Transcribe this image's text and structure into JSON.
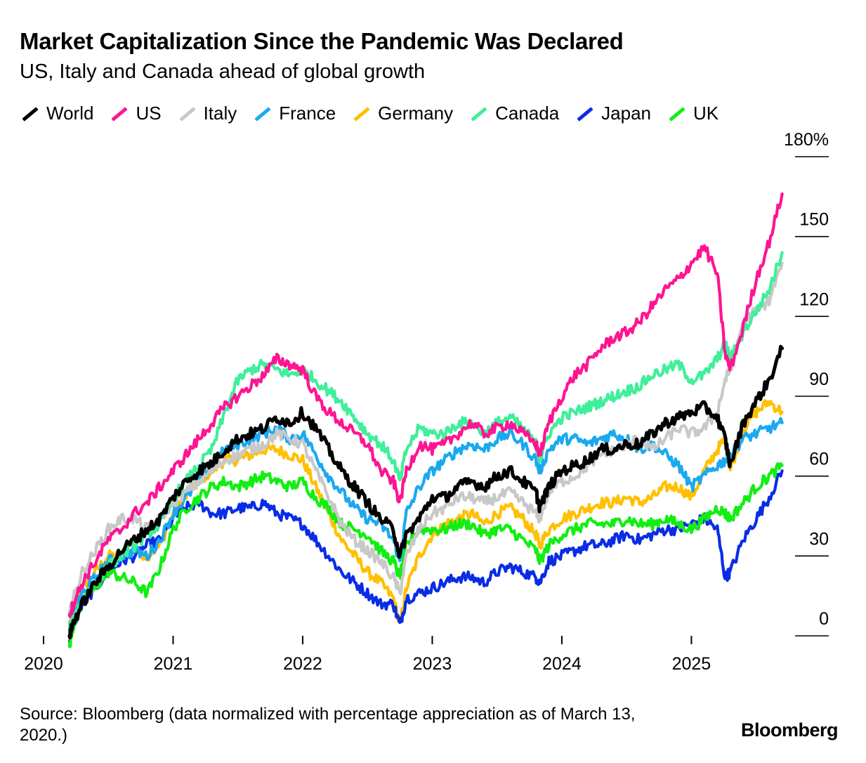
{
  "header": {
    "title": "Market Capitalization Since the Pandemic Was Declared",
    "subtitle": "US, Italy and Canada ahead of global growth"
  },
  "legend": {
    "items": [
      {
        "label": "World",
        "color": "#000000"
      },
      {
        "label": "US",
        "color": "#ff1493"
      },
      {
        "label": "Italy",
        "color": "#c8c8c8"
      },
      {
        "label": "France",
        "color": "#1aa9f0"
      },
      {
        "label": "Germany",
        "color": "#ffc000"
      },
      {
        "label": "Canada",
        "color": "#3fef9a"
      },
      {
        "label": "Japan",
        "color": "#0a2ce6"
      },
      {
        "label": "UK",
        "color": "#12ee12"
      }
    ]
  },
  "footer": {
    "source": "Source: Bloomberg (data normalized with percentage appreciation as of March 13, 2020.)",
    "brand": "Bloomberg"
  },
  "chart_data": {
    "type": "line",
    "title": "Market Capitalization Since the Pandemic Was Declared",
    "subtitle": "US, Italy and Canada ahead of global growth",
    "xlabel": "",
    "ylabel": "",
    "y_ticks": [
      {
        "value": 0,
        "label": "0"
      },
      {
        "value": 30,
        "label": "30"
      },
      {
        "value": 60,
        "label": "60"
      },
      {
        "value": 90,
        "label": "90"
      },
      {
        "value": 120,
        "label": "120"
      },
      {
        "value": 150,
        "label": "150"
      },
      {
        "value": 180,
        "label": "180%"
      }
    ],
    "x_ticks": [
      {
        "value": 2020.0,
        "label": "2020"
      },
      {
        "value": 2021.0,
        "label": "2021"
      },
      {
        "value": 2022.0,
        "label": "2022"
      },
      {
        "value": 2023.0,
        "label": "2023"
      },
      {
        "value": 2024.0,
        "label": "2024"
      },
      {
        "value": 2025.0,
        "label": "2025"
      }
    ],
    "ylim": [
      0,
      180
    ],
    "xlim": [
      2020.0,
      2025.8
    ],
    "y_axis_side": "right",
    "grid": false,
    "legend_position": "top",
    "series": [
      {
        "name": "World",
        "color": "#000000",
        "x": [
          2020.2,
          2020.23,
          2020.3,
          2020.4,
          2020.5,
          2020.6,
          2020.7,
          2020.8,
          2020.9,
          2021.0,
          2021.1,
          2021.2,
          2021.3,
          2021.4,
          2021.5,
          2021.6,
          2021.7,
          2021.8,
          2021.9,
          2022.0,
          2022.1,
          2022.2,
          2022.3,
          2022.4,
          2022.5,
          2022.6,
          2022.7,
          2022.75,
          2022.8,
          2022.9,
          2023.0,
          2023.1,
          2023.2,
          2023.3,
          2023.4,
          2023.5,
          2023.6,
          2023.7,
          2023.8,
          2023.83,
          2023.9,
          2024.0,
          2024.1,
          2024.2,
          2024.3,
          2024.4,
          2024.5,
          2024.6,
          2024.7,
          2024.8,
          2024.9,
          2025.0,
          2025.1,
          2025.2,
          2025.26,
          2025.3,
          2025.4,
          2025.5,
          2025.6,
          2025.7
        ],
        "y": [
          0,
          5,
          12,
          20,
          26,
          32,
          36,
          40,
          44,
          52,
          58,
          62,
          65,
          70,
          74,
          76,
          78,
          82,
          80,
          84,
          78,
          70,
          62,
          56,
          50,
          44,
          40,
          30,
          38,
          44,
          52,
          52,
          56,
          58,
          56,
          60,
          62,
          58,
          54,
          48,
          56,
          62,
          64,
          66,
          70,
          70,
          72,
          72,
          76,
          80,
          82,
          84,
          86,
          82,
          74,
          64,
          80,
          88,
          96,
          108
        ]
      },
      {
        "name": "US",
        "color": "#ff1493",
        "x": [
          2020.2,
          2020.23,
          2020.3,
          2020.4,
          2020.5,
          2020.6,
          2020.7,
          2020.8,
          2020.9,
          2021.0,
          2021.1,
          2021.2,
          2021.3,
          2021.4,
          2021.5,
          2021.6,
          2021.7,
          2021.8,
          2021.9,
          2022.0,
          2022.1,
          2022.2,
          2022.3,
          2022.4,
          2022.5,
          2022.6,
          2022.7,
          2022.75,
          2022.8,
          2022.9,
          2023.0,
          2023.1,
          2023.2,
          2023.3,
          2023.4,
          2023.5,
          2023.6,
          2023.7,
          2023.8,
          2023.83,
          2023.9,
          2024.0,
          2024.1,
          2024.2,
          2024.3,
          2024.4,
          2024.5,
          2024.6,
          2024.7,
          2024.8,
          2024.9,
          2025.0,
          2025.1,
          2025.2,
          2025.26,
          2025.3,
          2025.4,
          2025.5,
          2025.6,
          2025.7
        ],
        "y": [
          8,
          12,
          20,
          28,
          36,
          40,
          46,
          50,
          56,
          62,
          68,
          74,
          80,
          86,
          90,
          94,
          98,
          104,
          102,
          100,
          90,
          84,
          80,
          76,
          72,
          62,
          58,
          50,
          62,
          72,
          70,
          72,
          76,
          80,
          76,
          78,
          80,
          76,
          72,
          68,
          80,
          90,
          98,
          102,
          108,
          112,
          114,
          118,
          124,
          130,
          134,
          140,
          146,
          136,
          106,
          100,
          116,
          134,
          148,
          166
        ]
      },
      {
        "name": "Italy",
        "color": "#c8c8c8",
        "x": [
          2020.2,
          2020.23,
          2020.3,
          2020.4,
          2020.5,
          2020.6,
          2020.7,
          2020.8,
          2020.9,
          2021.0,
          2021.1,
          2021.2,
          2021.3,
          2021.4,
          2021.5,
          2021.6,
          2021.7,
          2021.8,
          2021.9,
          2022.0,
          2022.1,
          2022.2,
          2022.3,
          2022.4,
          2022.5,
          2022.6,
          2022.7,
          2022.75,
          2022.8,
          2022.9,
          2023.0,
          2023.1,
          2023.2,
          2023.3,
          2023.4,
          2023.5,
          2023.6,
          2023.7,
          2023.8,
          2023.83,
          2023.9,
          2024.0,
          2024.1,
          2024.2,
          2024.3,
          2024.4,
          2024.5,
          2024.6,
          2024.7,
          2024.8,
          2024.9,
          2025.0,
          2025.1,
          2025.2,
          2025.26,
          2025.3,
          2025.4,
          2025.5,
          2025.6,
          2025.7
        ],
        "y": [
          8,
          14,
          24,
          32,
          40,
          44,
          44,
          40,
          44,
          50,
          54,
          58,
          62,
          66,
          68,
          70,
          72,
          76,
          74,
          72,
          62,
          52,
          42,
          36,
          32,
          28,
          22,
          16,
          30,
          40,
          46,
          48,
          52,
          52,
          50,
          52,
          54,
          50,
          46,
          44,
          54,
          58,
          60,
          64,
          68,
          70,
          72,
          74,
          70,
          74,
          78,
          76,
          78,
          84,
          96,
          100,
          118,
          122,
          126,
          140
        ]
      },
      {
        "name": "France",
        "color": "#1aa9f0",
        "x": [
          2020.2,
          2020.23,
          2020.3,
          2020.4,
          2020.5,
          2020.6,
          2020.7,
          2020.8,
          2020.9,
          2021.0,
          2021.1,
          2021.2,
          2021.3,
          2021.4,
          2021.5,
          2021.6,
          2021.7,
          2021.8,
          2021.9,
          2022.0,
          2022.1,
          2022.2,
          2022.3,
          2022.4,
          2022.5,
          2022.6,
          2022.7,
          2022.75,
          2022.8,
          2022.9,
          2023.0,
          2023.1,
          2023.2,
          2023.3,
          2023.4,
          2023.5,
          2023.6,
          2023.7,
          2023.8,
          2023.83,
          2023.9,
          2024.0,
          2024.1,
          2024.2,
          2024.3,
          2024.4,
          2024.5,
          2024.6,
          2024.7,
          2024.8,
          2024.9,
          2025.0,
          2025.1,
          2025.2,
          2025.26,
          2025.3,
          2025.4,
          2025.5,
          2025.6,
          2025.7
        ],
        "y": [
          2,
          8,
          16,
          22,
          28,
          30,
          32,
          30,
          36,
          46,
          52,
          58,
          64,
          70,
          72,
          74,
          76,
          78,
          74,
          76,
          68,
          60,
          54,
          48,
          44,
          42,
          36,
          28,
          46,
          56,
          62,
          66,
          70,
          72,
          70,
          74,
          76,
          72,
          66,
          62,
          70,
          74,
          74,
          72,
          74,
          76,
          74,
          70,
          72,
          68,
          64,
          56,
          60,
          64,
          66,
          68,
          74,
          76,
          78,
          80
        ]
      },
      {
        "name": "Germany",
        "color": "#ffc000",
        "x": [
          2020.2,
          2020.23,
          2020.3,
          2020.4,
          2020.5,
          2020.6,
          2020.7,
          2020.8,
          2020.9,
          2021.0,
          2021.1,
          2021.2,
          2021.3,
          2021.4,
          2021.5,
          2021.6,
          2021.7,
          2021.8,
          2021.9,
          2022.0,
          2022.1,
          2022.2,
          2022.3,
          2022.4,
          2022.5,
          2022.6,
          2022.7,
          2022.75,
          2022.8,
          2022.9,
          2023.0,
          2023.1,
          2023.2,
          2023.3,
          2023.4,
          2023.5,
          2023.6,
          2023.7,
          2023.8,
          2023.83,
          2023.9,
          2024.0,
          2024.1,
          2024.2,
          2024.3,
          2024.4,
          2024.5,
          2024.6,
          2024.7,
          2024.8,
          2024.9,
          2025.0,
          2025.1,
          2025.2,
          2025.26,
          2025.3,
          2025.4,
          2025.5,
          2025.6,
          2025.7
        ],
        "y": [
          4,
          10,
          18,
          24,
          30,
          30,
          32,
          30,
          34,
          46,
          52,
          58,
          62,
          66,
          66,
          68,
          70,
          70,
          68,
          66,
          56,
          46,
          36,
          30,
          24,
          20,
          14,
          4,
          18,
          30,
          38,
          42,
          44,
          46,
          42,
          46,
          48,
          44,
          38,
          34,
          40,
          44,
          46,
          48,
          50,
          50,
          52,
          50,
          52,
          56,
          56,
          52,
          62,
          70,
          74,
          62,
          78,
          84,
          88,
          84
        ]
      },
      {
        "name": "Canada",
        "color": "#3fef9a",
        "x": [
          2020.2,
          2020.23,
          2020.3,
          2020.4,
          2020.5,
          2020.6,
          2020.7,
          2020.8,
          2020.9,
          2021.0,
          2021.1,
          2021.2,
          2021.3,
          2021.4,
          2021.5,
          2021.6,
          2021.7,
          2021.8,
          2021.9,
          2022.0,
          2022.1,
          2022.2,
          2022.3,
          2022.4,
          2022.5,
          2022.6,
          2022.7,
          2022.75,
          2022.8,
          2022.9,
          2023.0,
          2023.1,
          2023.2,
          2023.3,
          2023.4,
          2023.5,
          2023.6,
          2023.7,
          2023.8,
          2023.83,
          2023.9,
          2024.0,
          2024.1,
          2024.2,
          2024.3,
          2024.4,
          2024.5,
          2024.6,
          2024.7,
          2024.8,
          2024.9,
          2025.0,
          2025.1,
          2025.2,
          2025.26,
          2025.3,
          2025.4,
          2025.5,
          2025.6,
          2025.7
        ],
        "y": [
          2,
          6,
          14,
          20,
          26,
          30,
          34,
          38,
          42,
          52,
          58,
          64,
          70,
          84,
          96,
          100,
          102,
          100,
          98,
          100,
          96,
          92,
          88,
          82,
          76,
          72,
          66,
          58,
          70,
          78,
          76,
          76,
          80,
          80,
          76,
          80,
          82,
          78,
          72,
          66,
          76,
          82,
          84,
          86,
          88,
          90,
          92,
          94,
          98,
          100,
          102,
          96,
          98,
          104,
          110,
          104,
          114,
          122,
          130,
          144
        ]
      },
      {
        "name": "Japan",
        "color": "#0a2ce6",
        "x": [
          2020.2,
          2020.23,
          2020.3,
          2020.4,
          2020.5,
          2020.6,
          2020.7,
          2020.8,
          2020.9,
          2021.0,
          2021.1,
          2021.2,
          2021.3,
          2021.4,
          2021.5,
          2021.6,
          2021.7,
          2021.8,
          2021.9,
          2022.0,
          2022.1,
          2022.2,
          2022.3,
          2022.4,
          2022.5,
          2022.6,
          2022.7,
          2022.75,
          2022.8,
          2022.9,
          2023.0,
          2023.1,
          2023.2,
          2023.3,
          2023.4,
          2023.5,
          2023.6,
          2023.7,
          2023.8,
          2023.83,
          2023.9,
          2024.0,
          2024.1,
          2024.2,
          2024.3,
          2024.4,
          2024.5,
          2024.6,
          2024.7,
          2024.8,
          2024.9,
          2025.0,
          2025.1,
          2025.2,
          2025.26,
          2025.3,
          2025.4,
          2025.5,
          2025.6,
          2025.7
        ],
        "y": [
          -2,
          4,
          12,
          18,
          24,
          28,
          30,
          34,
          36,
          44,
          48,
          50,
          46,
          46,
          48,
          48,
          50,
          46,
          44,
          42,
          36,
          30,
          24,
          20,
          16,
          12,
          12,
          4,
          14,
          16,
          18,
          20,
          22,
          22,
          20,
          24,
          26,
          24,
          22,
          20,
          28,
          30,
          32,
          34,
          34,
          36,
          38,
          36,
          38,
          40,
          40,
          42,
          44,
          40,
          22,
          24,
          36,
          44,
          52,
          62
        ]
      },
      {
        "name": "UK",
        "color": "#12ee12",
        "x": [
          2020.2,
          2020.23,
          2020.3,
          2020.4,
          2020.5,
          2020.6,
          2020.7,
          2020.8,
          2020.9,
          2021.0,
          2021.1,
          2021.2,
          2021.3,
          2021.4,
          2021.5,
          2021.6,
          2021.7,
          2021.8,
          2021.9,
          2022.0,
          2022.1,
          2022.2,
          2022.3,
          2022.4,
          2022.5,
          2022.6,
          2022.7,
          2022.75,
          2022.8,
          2022.9,
          2023.0,
          2023.1,
          2023.2,
          2023.3,
          2023.4,
          2023.5,
          2023.6,
          2023.7,
          2023.8,
          2023.83,
          2023.9,
          2024.0,
          2024.1,
          2024.2,
          2024.3,
          2024.4,
          2024.5,
          2024.6,
          2024.7,
          2024.8,
          2024.9,
          2025.0,
          2025.1,
          2025.2,
          2025.26,
          2025.3,
          2025.4,
          2025.5,
          2025.6,
          2025.7
        ],
        "y": [
          -4,
          4,
          12,
          18,
          24,
          22,
          20,
          16,
          26,
          40,
          48,
          52,
          56,
          58,
          56,
          58,
          60,
          58,
          56,
          58,
          52,
          48,
          42,
          40,
          38,
          32,
          28,
          22,
          34,
          40,
          40,
          40,
          42,
          42,
          38,
          40,
          40,
          36,
          32,
          28,
          34,
          38,
          40,
          42,
          42,
          42,
          44,
          42,
          42,
          44,
          42,
          40,
          44,
          48,
          46,
          44,
          50,
          56,
          60,
          64
        ]
      }
    ]
  }
}
